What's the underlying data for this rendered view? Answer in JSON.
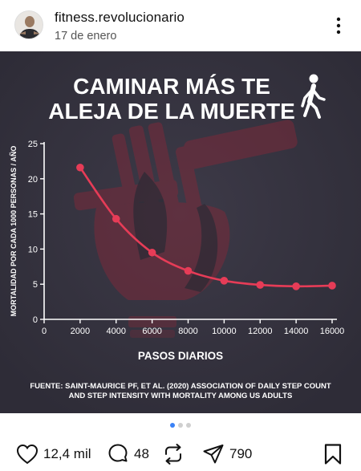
{
  "post": {
    "username": "fitness.revolucionario",
    "date": "17 de enero"
  },
  "infographic": {
    "title_line1": "CAMINAR MÁS TE",
    "title_line2": "ALEJA DE LA MUERTE",
    "source_line1": "FUENTE: SAINT-MAURICE PF, ET AL. (2020) ASSOCIATION OF DAILY STEP COUNT",
    "source_line2": "AND STEP INTENSITY WITH MORTALITY AMONG US ADULTS"
  },
  "chart_data": {
    "type": "line",
    "title": "CAMINAR MÁS TE ALEJA DE LA MUERTE",
    "xlabel": "PASOS DIARIOS",
    "ylabel": "MORTALIDAD POR CADA 1000 PERSONAS / AÑO",
    "x": [
      2000,
      4000,
      6000,
      8000,
      10000,
      12000,
      14000,
      16000
    ],
    "y": [
      21.6,
      14.3,
      9.5,
      6.9,
      5.5,
      4.9,
      4.7,
      4.8
    ],
    "xlim": [
      0,
      16000
    ],
    "ylim": [
      0,
      25
    ],
    "xticks": [
      "0",
      "2000",
      "4000",
      "6000",
      "8000",
      "10000",
      "12000",
      "14000",
      "16000"
    ],
    "yticks": [
      "0",
      "5",
      "10",
      "15",
      "20",
      "25"
    ],
    "grid": false,
    "color": "#e63c57"
  },
  "carousel": {
    "total": 3,
    "active": 0
  },
  "actions": {
    "likes": "12,4 mil",
    "comments": "48",
    "shares": "790"
  },
  "colors": {
    "background": "#34323f",
    "accent": "#e63c57",
    "dot_active": "#3b82f6"
  }
}
